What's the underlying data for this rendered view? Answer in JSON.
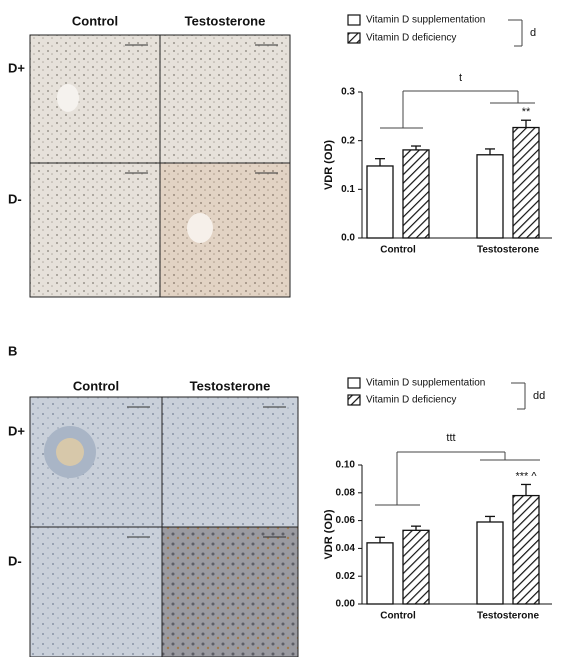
{
  "chart_data": [
    {
      "type": "bar",
      "y_label": "VDR (OD)",
      "categories": [
        "Control",
        "Testosterone"
      ],
      "series": [
        {
          "name": "Vitamin D supplementation",
          "color": "#ffffff",
          "pattern": "solid",
          "values": [
            0.148,
            0.171
          ],
          "errors": [
            0.015,
            0.012
          ],
          "annotations": [
            null,
            null
          ]
        },
        {
          "name": "Vitamin D deficiency",
          "color": "#ffffff",
          "pattern": "hatch",
          "values": [
            0.181,
            0.227
          ],
          "errors": [
            0.008,
            0.015
          ],
          "annotations": [
            null,
            "**"
          ]
        }
      ],
      "ylim": [
        0,
        0.3
      ],
      "yticks": [
        {
          "value": 0,
          "label": "0.0"
        },
        0.1,
        0.2,
        0.3
      ],
      "bracket_label": "t",
      "legend_bracket_label": "d"
    },
    {
      "type": "bar",
      "y_label": "VDR (OD)",
      "categories": [
        "Control",
        "Testosterone"
      ],
      "series": [
        {
          "name": "Vitamin D supplementation",
          "color": "#ffffff",
          "pattern": "solid",
          "values": [
            0.044,
            0.059
          ],
          "errors": [
            0.004,
            0.004
          ],
          "annotations": [
            null,
            null
          ]
        },
        {
          "name": "Vitamin D deficiency",
          "color": "#ffffff",
          "pattern": "hatch",
          "values": [
            0.053,
            0.078
          ],
          "errors": [
            0.003,
            0.008
          ],
          "annotations": [
            null,
            "*** ^"
          ]
        }
      ],
      "ylim": [
        0,
        0.1
      ],
      "yticks": [
        {
          "value": 0,
          "label": "0.00"
        },
        {
          "value": 0.02,
          "label": "0.02"
        },
        {
          "value": 0.04,
          "label": "0.04"
        },
        {
          "value": 0.06,
          "label": "0.06"
        },
        {
          "value": 0.08,
          "label": "0.08"
        },
        {
          "value": 0.1,
          "label": "0.10"
        }
      ],
      "bracket_label": "ttt",
      "legend_bracket_label": "dd"
    }
  ],
  "image_grids": [
    {
      "columns": [
        "Control",
        "Testosterone"
      ],
      "rows": [
        "D+",
        "D-"
      ]
    },
    {
      "columns": [
        "Control",
        "Testosterone"
      ],
      "rows": [
        "D+",
        "D-"
      ]
    }
  ],
  "panel_label": "B"
}
